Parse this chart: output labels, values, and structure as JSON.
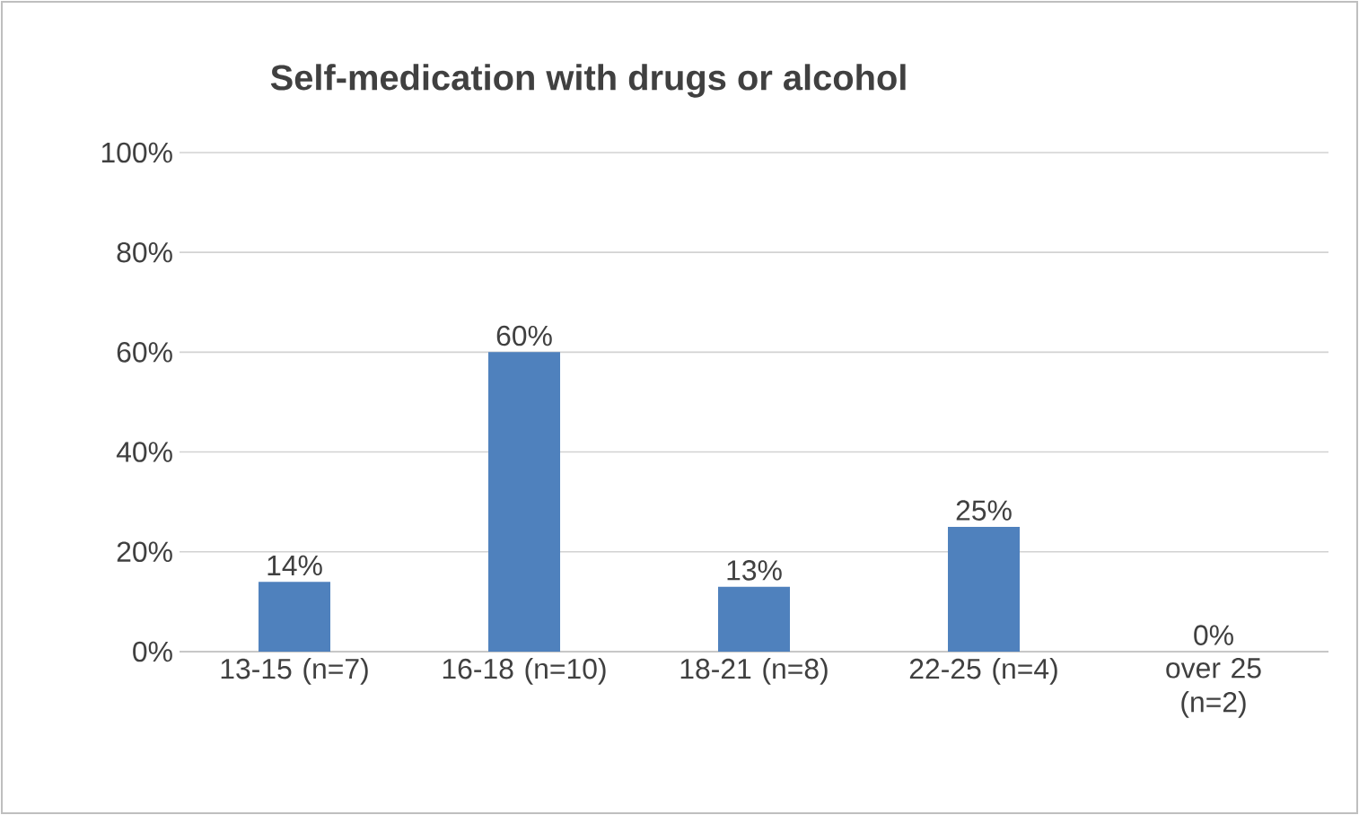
{
  "chart_data": {
    "type": "bar",
    "title": "Self-medication with drugs or alcohol",
    "categories": [
      "13-15 (n=7)",
      "16-18 (n=10)",
      "18-21 (n=8)",
      "22-25 (n=4)",
      "over 25 (n=2)"
    ],
    "values": [
      14,
      60,
      13,
      25,
      0
    ],
    "value_labels": [
      "14%",
      "60%",
      "13%",
      "25%",
      "0%"
    ],
    "color": "#4f81bd",
    "ylim": [
      0,
      100
    ],
    "yticks": [
      {
        "value": 0,
        "label": "0%"
      },
      {
        "value": 20,
        "label": "20%"
      },
      {
        "value": 40,
        "label": "40%"
      },
      {
        "value": 60,
        "label": "60%"
      },
      {
        "value": 80,
        "label": "80%"
      },
      {
        "value": 100,
        "label": "100%"
      }
    ],
    "grid": "y"
  }
}
